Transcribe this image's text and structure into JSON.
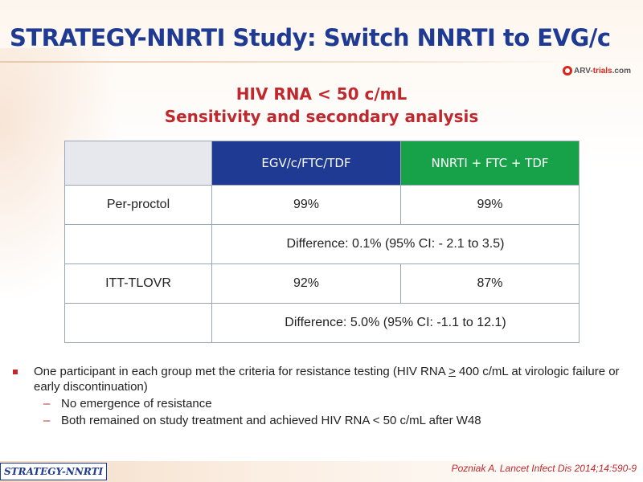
{
  "slide": {
    "title": "STRATEGY-NNRTI Study: Switch NNRTI to EVG/c",
    "logo": {
      "prefix": "ARV-",
      "main": "trials",
      "suffix": ".com"
    },
    "subtitle_line1": "HIV RNA < 50 c/mL",
    "subtitle_line2": "Sensitivity and secondary analysis"
  },
  "table": {
    "headers": [
      "",
      "EGV/c/FTC/TDF",
      "NNRTI + FTC + TDF"
    ],
    "rows": [
      {
        "label": "Per-proctol",
        "col1": "99%",
        "col2": "99%"
      },
      {
        "label": "",
        "difference": "Difference: 0.1% (95% CI: - 2.1 to 3.5)"
      },
      {
        "label": "ITT-TLOVR",
        "col1": "92%",
        "col2": "87%"
      },
      {
        "label": "",
        "difference": "Difference: 5.0% (95% CI: -1.1 to 12.1)"
      }
    ]
  },
  "bullets": {
    "main_before": "One participant in each group met the criteria for resistance testing (HIV RNA ",
    "main_symbol": ">",
    "main_after": " 400 c/mL at virologic failure or early discontinuation)",
    "sub": [
      "No emergence of resistance",
      "Both remained on study treatment and achieved HIV RNA < 50 c/mL after W48"
    ]
  },
  "footer": {
    "tag": "STRATEGY-NNRTI",
    "citation": "Pozniak A. Lancet Infect Dis 2014;14:590-9"
  },
  "colors": {
    "title": "#1f3a93",
    "subtitle": "#c0282d",
    "header_egv": "#1f3a93",
    "header_nnrti": "#17a24a"
  }
}
